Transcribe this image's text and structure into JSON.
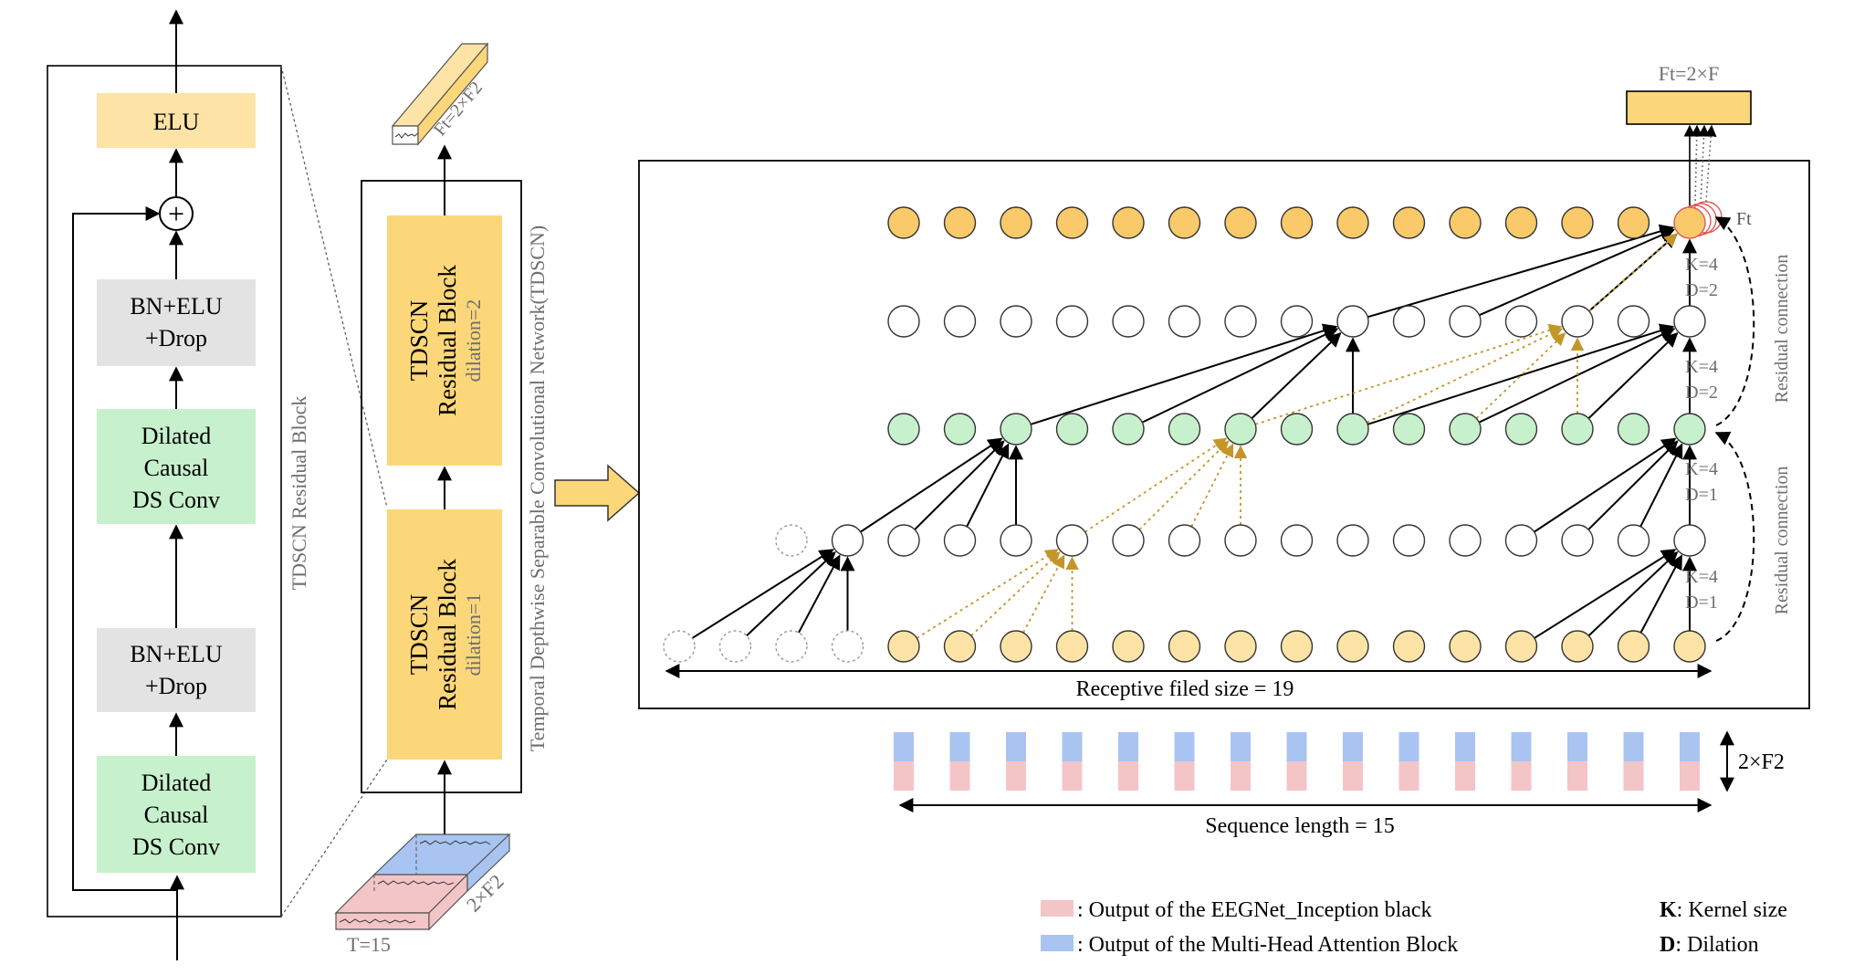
{
  "residual_block_detail": {
    "elu": "ELU",
    "bn_top_line1": "BN+ELU",
    "bn_top_line2": "+Drop",
    "conv_top_line1": "Dilated",
    "conv_top_line2": "Causal",
    "conv_top_line3": "DS Conv",
    "bn_bottom_line1": "BN+ELU",
    "bn_bottom_line2": "+Drop",
    "conv_bottom_line1": "Dilated",
    "conv_bottom_line2": "Causal",
    "conv_bottom_line3": "DS Conv",
    "add_symbol": "+",
    "side_label": "TDSCN Residual Block"
  },
  "tdscn_stack": {
    "block2_line1": "TDSCN",
    "block2_line2": "Residual Block",
    "block2_line3": "dilation=2",
    "block1_line1": "TDSCN",
    "block1_line2": "Residual Block",
    "block1_line3": "dilation=1",
    "side_label": "Temporal Depthwise Separable Convolutional Network(TDSCN)",
    "output_label": "Ft=2×F2",
    "input_depth_label": "2×F2",
    "input_time_label": "T=15"
  },
  "network": {
    "ft_label": "Ft",
    "output_box_label": "Ft=2×F",
    "receptive_label": "Receptive filed size = 19",
    "sequence_label": "Sequence length = 15",
    "feature_label": "2×F2",
    "layers": [
      {
        "k": "K=4",
        "d": "D=1"
      },
      {
        "k": "K=4",
        "d": "D=1"
      },
      {
        "k": "K=4",
        "d": "D=2"
      },
      {
        "k": "K=4",
        "d": "D=2"
      }
    ],
    "residual_label_1": "Residual connection",
    "residual_label_2": "Residual connection",
    "colors": {
      "orange": "#f9c96a",
      "green": "#c7f1cc",
      "light_yellow": "#fde3a6",
      "yellow_block": "#fcd77a",
      "pink": "#f4c5c7",
      "blue": "#a9c4f0",
      "gold_arrow": "#c4962a"
    }
  },
  "legend": {
    "pink_text": ": Output of the EEGNet_Inception black",
    "blue_text": ": Output of the Multi-Head Attention Block",
    "k_key": "K",
    "k_text": ": Kernel size",
    "d_key": "D",
    "d_text": ": Dilation"
  }
}
